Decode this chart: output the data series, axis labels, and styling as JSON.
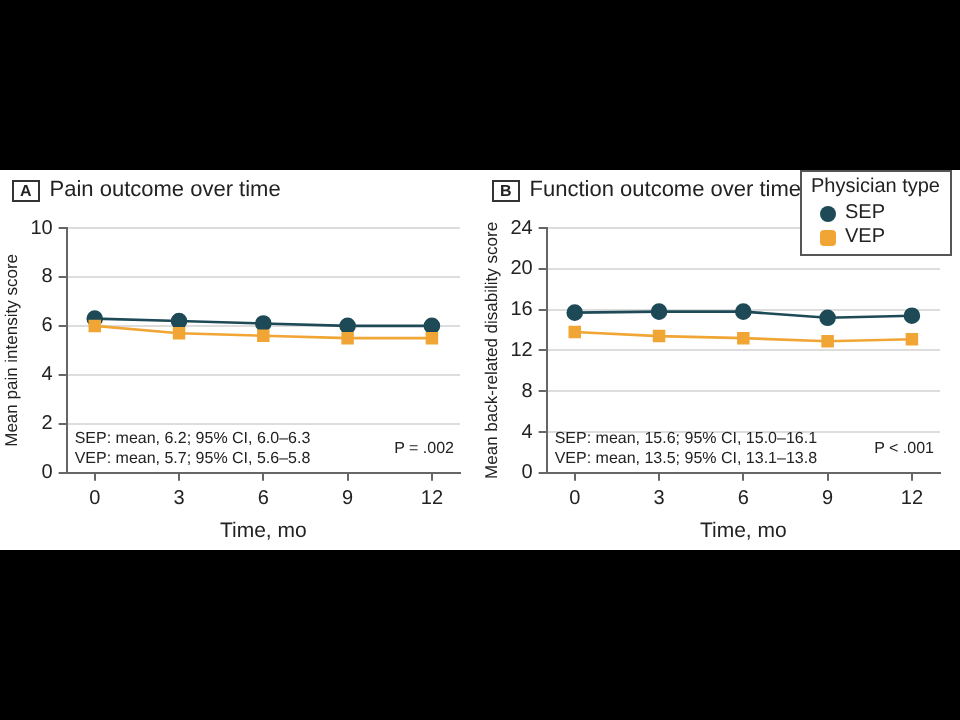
{
  "chart_data": [
    {
      "type": "line",
      "title": "A Pain outcome over time",
      "xlabel": "Time, mo",
      "ylabel": "Mean pain intensity score",
      "x": [
        0,
        3,
        6,
        9,
        12
      ],
      "xlim": [
        -1,
        13
      ],
      "xticks": [
        0,
        3,
        6,
        9,
        12
      ],
      "ylim": [
        0,
        10
      ],
      "yticks": [
        0,
        2,
        4,
        6,
        8,
        10
      ],
      "grid": "y",
      "legend": false,
      "series": [
        {
          "color": "#1d4a56",
          "marker": "circle",
          "values": [
            6.3,
            6.2,
            6.1,
            6.0,
            6.0
          ]
        },
        {
          "color": "#f0a535",
          "marker": "square",
          "values": [
            6.0,
            5.7,
            5.6,
            5.5,
            5.5
          ]
        }
      ],
      "annotations": [
        "SEP: mean, 6.2; 95% CI, 6.0–6.3",
        "VEP: mean, 5.7; 95% CI, 5.6–5.8",
        "P = .002"
      ]
    },
    {
      "type": "line",
      "title": "B Function outcome over time",
      "xlabel": "Time, mo",
      "ylabel": "Mean back-related disability score",
      "legend_title": "Physician type",
      "x": [
        0,
        3,
        6,
        9,
        12
      ],
      "xlim": [
        -1,
        13
      ],
      "xticks": [
        0,
        3,
        6,
        9,
        12
      ],
      "ylim": [
        0,
        24
      ],
      "yticks": [
        0,
        4,
        8,
        12,
        16,
        20,
        24
      ],
      "grid": "y",
      "legend": "top right",
      "series": [
        {
          "name": "SEP",
          "color": "#1d4a56",
          "marker": "circle",
          "values": [
            15.7,
            15.8,
            15.8,
            15.2,
            15.4
          ]
        },
        {
          "name": "VEP",
          "color": "#f0a535",
          "marker": "square",
          "values": [
            13.8,
            13.4,
            13.2,
            12.9,
            13.1
          ]
        }
      ],
      "annotations": [
        "SEP: mean, 15.6; 95% CI, 15.0–16.1",
        "VEP: mean, 13.5; 95% CI, 13.1–13.8",
        "P < .001"
      ]
    }
  ]
}
